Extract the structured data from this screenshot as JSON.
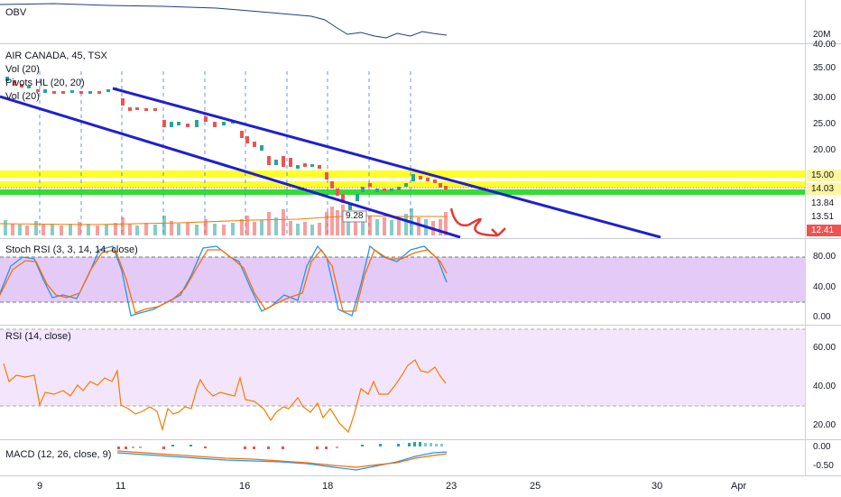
{
  "obv_pane": {
    "title": "OBV",
    "scale_label": "20M",
    "scale_value": "40.00"
  },
  "price_pane": {
    "symbol_line": "AIR CANADA, 45, TSX",
    "indicators": [
      "Vol (20)",
      "Pivots HL (20, 20)",
      "Vol (20)"
    ],
    "ticks": [
      "35.00",
      "30.00",
      "25.00",
      "20.00"
    ],
    "price_tags": [
      {
        "label": "15.00",
        "color": "#fff59d"
      },
      {
        "label": "14.03",
        "color": "#fff59d"
      },
      {
        "label": "13.84",
        "color": "#ffffff"
      },
      {
        "label": "13.51",
        "color": "#ffffff"
      },
      {
        "label": "12.41",
        "color": "#ef5350"
      }
    ],
    "pivot_label": "9.28"
  },
  "stoch_pane": {
    "title": "Stoch RSI (3, 3, 14, 14, close)",
    "ticks": [
      "80.00",
      "40.00",
      "0.00"
    ]
  },
  "rsi_pane": {
    "title": "RSI (14, close)",
    "ticks": [
      "60.00",
      "40.00",
      "20.00"
    ]
  },
  "macd_pane": {
    "title": "MACD (12, 26, close, 9)",
    "ticks": [
      "0.00",
      "-0.50"
    ]
  },
  "time_axis": [
    "9",
    "11",
    "16",
    "18",
    "23",
    "25",
    "30",
    "Apr"
  ],
  "colors": {
    "up": "#26a69a",
    "down": "#ef5350",
    "channel": "#1f1fd0",
    "support_yellow": "#ffff00",
    "support_green": "#33dd33",
    "stoch_k": "#2196f3",
    "stoch_d": "#ff6d00",
    "rsi": "#f57c00",
    "band_purple": "#e1c4f5"
  }
}
